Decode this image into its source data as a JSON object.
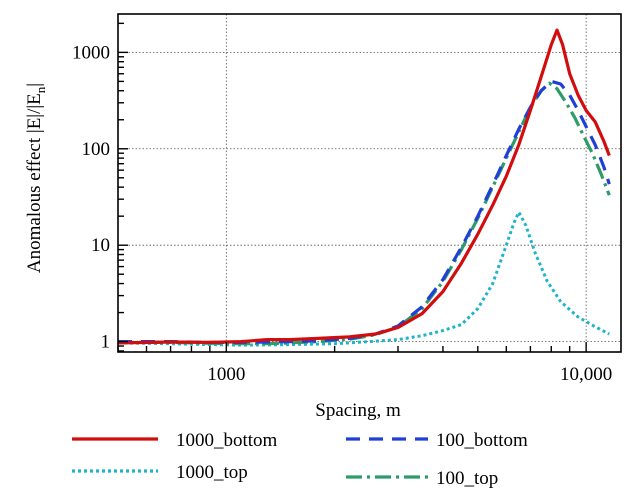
{
  "chart_data": {
    "type": "line",
    "title": "",
    "xlabel": "Spacing, m",
    "ylabel_main": "Anomalous effect |E|/|E",
    "ylabel_sub": "n",
    "ylabel_end": "|",
    "xscale": "log",
    "yscale": "log",
    "xlim": [
      500,
      12500
    ],
    "ylim": [
      0.78,
      2500
    ],
    "grid": true,
    "legend_position": "bottom",
    "x_ticks": [
      {
        "value": 1000,
        "label": "1000"
      },
      {
        "value": 10000,
        "label": "10,000"
      }
    ],
    "y_ticks": [
      {
        "value": 1,
        "label": "1"
      },
      {
        "value": 10,
        "label": "10"
      },
      {
        "value": 100,
        "label": "100"
      },
      {
        "value": 1000,
        "label": "1000"
      }
    ],
    "series": [
      {
        "name": "1000_bottom",
        "color": "#d10d0d",
        "dash": "solid",
        "x": [
          500,
          700,
          900,
          1100,
          1300,
          1500,
          1800,
          2200,
          2600,
          3000,
          3500,
          4000,
          4500,
          5000,
          5500,
          6000,
          6500,
          7000,
          7500,
          8000,
          8300,
          8600,
          9000,
          9500,
          10000,
          10600,
          11200,
          11600
        ],
        "y": [
          0.97,
          0.99,
          0.98,
          1.0,
          1.05,
          1.05,
          1.08,
          1.12,
          1.2,
          1.4,
          1.95,
          3.3,
          6.5,
          13,
          26,
          52,
          110,
          250,
          560,
          1200,
          1700,
          1200,
          600,
          360,
          250,
          190,
          120,
          85
        ]
      },
      {
        "name": "100_bottom",
        "color": "#1f3fd6",
        "dash": "14 9",
        "x": [
          500,
          700,
          900,
          1100,
          1300,
          1500,
          1800,
          2200,
          2600,
          3000,
          3500,
          4000,
          4500,
          5000,
          5500,
          6000,
          6500,
          7000,
          7500,
          8000,
          8500,
          9000,
          9500,
          10000,
          10600,
          11200,
          11600
        ],
        "y": [
          1.0,
          1.0,
          0.98,
          0.98,
          0.99,
          1.0,
          1.02,
          1.08,
          1.2,
          1.45,
          2.3,
          4.4,
          9.5,
          20,
          42,
          85,
          160,
          270,
          400,
          500,
          470,
          360,
          250,
          170,
          110,
          65,
          43
        ]
      },
      {
        "name": "1000_top",
        "color": "#1fb4cc",
        "dash": "3 3",
        "x": [
          500,
          700,
          900,
          1100,
          1500,
          2000,
          2500,
          3000,
          3500,
          4000,
          4500,
          5000,
          5500,
          6000,
          6300,
          6500,
          6800,
          7200,
          7800,
          8500,
          9500,
          10500,
          11600
        ],
        "y": [
          0.97,
          0.95,
          0.93,
          0.92,
          0.93,
          0.95,
          1.0,
          1.05,
          1.15,
          1.3,
          1.5,
          2.2,
          4.0,
          10,
          17,
          22,
          16,
          8.5,
          4.2,
          2.6,
          1.8,
          1.45,
          1.2
        ]
      },
      {
        "name": "100_top",
        "color": "#2e9b6b",
        "dash": "16 5 3 5",
        "x": [
          500,
          700,
          900,
          1100,
          1300,
          1500,
          1800,
          2200,
          2600,
          3000,
          3500,
          4000,
          4500,
          5000,
          5500,
          6000,
          6500,
          7000,
          7500,
          7900,
          8300,
          8800,
          9300,
          9800,
          10400,
          11000,
          11600
        ],
        "y": [
          0.98,
          0.98,
          0.96,
          0.95,
          0.95,
          0.97,
          1.0,
          1.06,
          1.18,
          1.42,
          2.2,
          4.2,
          9.0,
          19,
          40,
          80,
          150,
          270,
          400,
          480,
          420,
          300,
          210,
          140,
          90,
          55,
          33
        ]
      }
    ]
  }
}
